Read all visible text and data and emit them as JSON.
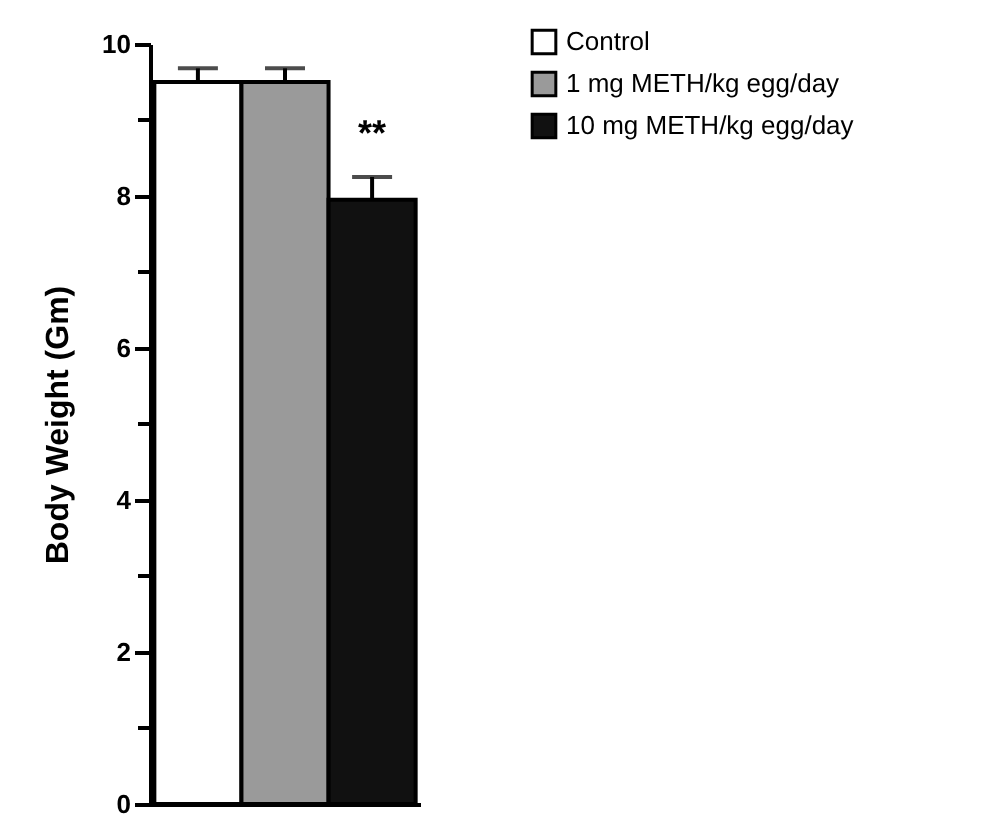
{
  "chart_data": {
    "type": "bar",
    "ylabel": "Body Weight (Gm)",
    "categories": [
      null
    ],
    "series": [
      {
        "name": "Control",
        "color": "#ffffff",
        "values": [
          9.5
        ],
        "errors": [
          0.18
        ]
      },
      {
        "name": "1 mg METH/kg egg/day",
        "color": "#9a9a9a",
        "values": [
          9.5
        ],
        "errors": [
          0.18
        ]
      },
      {
        "name": "10 mg METH/kg egg/day",
        "color": "#111111",
        "values": [
          7.95
        ],
        "errors": [
          0.3
        ]
      }
    ],
    "annotations": [
      "**"
    ],
    "ylim": [
      0,
      10
    ],
    "yticks": [
      0,
      {
        "value": 1,
        "label": null
      },
      2,
      {
        "value": 3,
        "label": null
      },
      4,
      {
        "value": 5,
        "label": null
      },
      6,
      {
        "value": 7,
        "label": null
      },
      8,
      {
        "value": 9,
        "label": null
      },
      10
    ],
    "tick_labels": "y",
    "grid": false,
    "legend": "top right"
  }
}
